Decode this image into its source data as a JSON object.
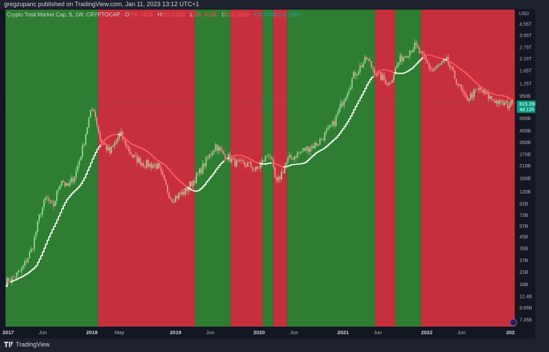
{
  "header": {
    "published": "gregzupanc published on TradingView.com, Jan 11, 2023 13:12 UTC+1"
  },
  "legend": {
    "symbol": "Crypto Total Market Cap, $, 1W, CRYPTOCAP",
    "o_label": "O",
    "o": "798.741B",
    "h_label": "H",
    "h": "822.823B",
    "l_label": "L",
    "l": "795.453B",
    "c_label": "C",
    "c": "815.266B",
    "change": "+17.474B (+2.19%)"
  },
  "price_axis": {
    "currency": "USD",
    "last_price": "815.266B",
    "countdown": "4d 12h"
  },
  "footer": {
    "brand": "TradingView"
  },
  "colors": {
    "bull_band": "#2e7d32",
    "bear_band": "#c62f3e",
    "ma_bull": "#ffffff",
    "ma_bear": "#ff5a5f",
    "last_price": "#089981"
  },
  "chart_data": {
    "type": "candlestick",
    "title": "Crypto Total Market Cap, $, 1W, CRYPTOCAP",
    "y_scale": "log",
    "ylim": [
      7.45,
      4550
    ],
    "y_unit": "B USD",
    "y_ticks": [
      "4.55T",
      "3.55T",
      "2.75T",
      "2.15T",
      "1.65T",
      "1.25T",
      "950B",
      "590B",
      "450B",
      "350B",
      "270B",
      "210B",
      "160B",
      "120B",
      "92B",
      "72B",
      "57B",
      "45B",
      "35B",
      "27B",
      "21B",
      "16B",
      "12.4B",
      "9.65B",
      "7.45B"
    ],
    "y_tick_values": [
      4550,
      3550,
      2750,
      2150,
      1650,
      1250,
      950,
      590,
      450,
      350,
      270,
      210,
      160,
      120,
      92,
      72,
      57,
      45,
      35,
      27,
      21,
      16,
      12.4,
      9.65,
      7.45
    ],
    "x_ticks": [
      {
        "label": "2017",
        "date": "2017-01-01"
      },
      {
        "label": "Jun",
        "date": "2017-06-01"
      },
      {
        "label": "2018",
        "date": "2018-01-01"
      },
      {
        "label": "May",
        "date": "2018-05-01"
      },
      {
        "label": "2019",
        "date": "2019-01-01"
      },
      {
        "label": "Jun",
        "date": "2019-06-01"
      },
      {
        "label": "2020",
        "date": "2020-01-01"
      },
      {
        "label": "Jun",
        "date": "2020-06-01"
      },
      {
        "label": "2021",
        "date": "2021-01-01"
      },
      {
        "label": "Jun",
        "date": "2021-06-01"
      },
      {
        "label": "2022",
        "date": "2022-01-01"
      },
      {
        "label": "Jun",
        "date": "2022-06-01"
      },
      {
        "label": "202",
        "date": "2023-01-01"
      }
    ],
    "close_series": [
      [
        "2016-12-20",
        17
      ],
      [
        "2017-01-15",
        18
      ],
      [
        "2017-03-01",
        22
      ],
      [
        "2017-04-15",
        35
      ],
      [
        "2017-05-20",
        75
      ],
      [
        "2017-06-15",
        105
      ],
      [
        "2017-07-15",
        85
      ],
      [
        "2017-08-20",
        160
      ],
      [
        "2017-09-15",
        130
      ],
      [
        "2017-10-20",
        175
      ],
      [
        "2017-11-20",
        300
      ],
      [
        "2017-12-20",
        600
      ],
      [
        "2018-01-07",
        760
      ],
      [
        "2018-02-05",
        380
      ],
      [
        "2018-03-20",
        280
      ],
      [
        "2018-05-05",
        420
      ],
      [
        "2018-06-25",
        260
      ],
      [
        "2018-08-15",
        220
      ],
      [
        "2018-10-15",
        210
      ],
      [
        "2018-11-25",
        125
      ],
      [
        "2018-12-15",
        102
      ],
      [
        "2019-02-10",
        120
      ],
      [
        "2019-04-10",
        175
      ],
      [
        "2019-06-25",
        330
      ],
      [
        "2019-07-20",
        280
      ],
      [
        "2019-09-25",
        220
      ],
      [
        "2019-11-15",
        215
      ],
      [
        "2019-12-20",
        190
      ],
      [
        "2020-02-15",
        285
      ],
      [
        "2020-03-15",
        140
      ],
      [
        "2020-05-05",
        240
      ],
      [
        "2020-07-20",
        300
      ],
      [
        "2020-09-10",
        340
      ],
      [
        "2020-11-20",
        520
      ],
      [
        "2021-01-05",
        920
      ],
      [
        "2021-02-20",
        1550
      ],
      [
        "2021-04-15",
        2150
      ],
      [
        "2021-05-20",
        1600
      ],
      [
        "2021-07-20",
        1250
      ],
      [
        "2021-09-05",
        2100
      ],
      [
        "2021-11-10",
        2850
      ],
      [
        "2021-12-15",
        2200
      ],
      [
        "2022-01-25",
        1650
      ],
      [
        "2022-03-30",
        2050
      ],
      [
        "2022-05-15",
        1250
      ],
      [
        "2022-06-20",
        880
      ],
      [
        "2022-08-15",
        1100
      ],
      [
        "2022-09-30",
        930
      ],
      [
        "2022-11-15",
        820
      ],
      [
        "2022-12-20",
        790
      ],
      [
        "2023-01-11",
        815.266
      ]
    ],
    "regimes": [
      {
        "start": "2016-12-20",
        "end": "2018-01-27",
        "trend": "bull"
      },
      {
        "start": "2018-01-27",
        "end": "2019-03-25",
        "trend": "bear"
      },
      {
        "start": "2019-03-25",
        "end": "2019-08-28",
        "trend": "bull"
      },
      {
        "start": "2019-08-28",
        "end": "2020-01-15",
        "trend": "bear"
      },
      {
        "start": "2020-01-15",
        "end": "2020-03-01",
        "trend": "bull"
      },
      {
        "start": "2020-03-01",
        "end": "2020-05-01",
        "trend": "bear"
      },
      {
        "start": "2020-05-01",
        "end": "2021-05-20",
        "trend": "bull"
      },
      {
        "start": "2021-05-20",
        "end": "2021-08-15",
        "trend": "bear"
      },
      {
        "start": "2021-08-15",
        "end": "2021-12-05",
        "trend": "bull"
      },
      {
        "start": "2021-12-05",
        "end": "2023-01-20",
        "trend": "bear"
      }
    ]
  }
}
